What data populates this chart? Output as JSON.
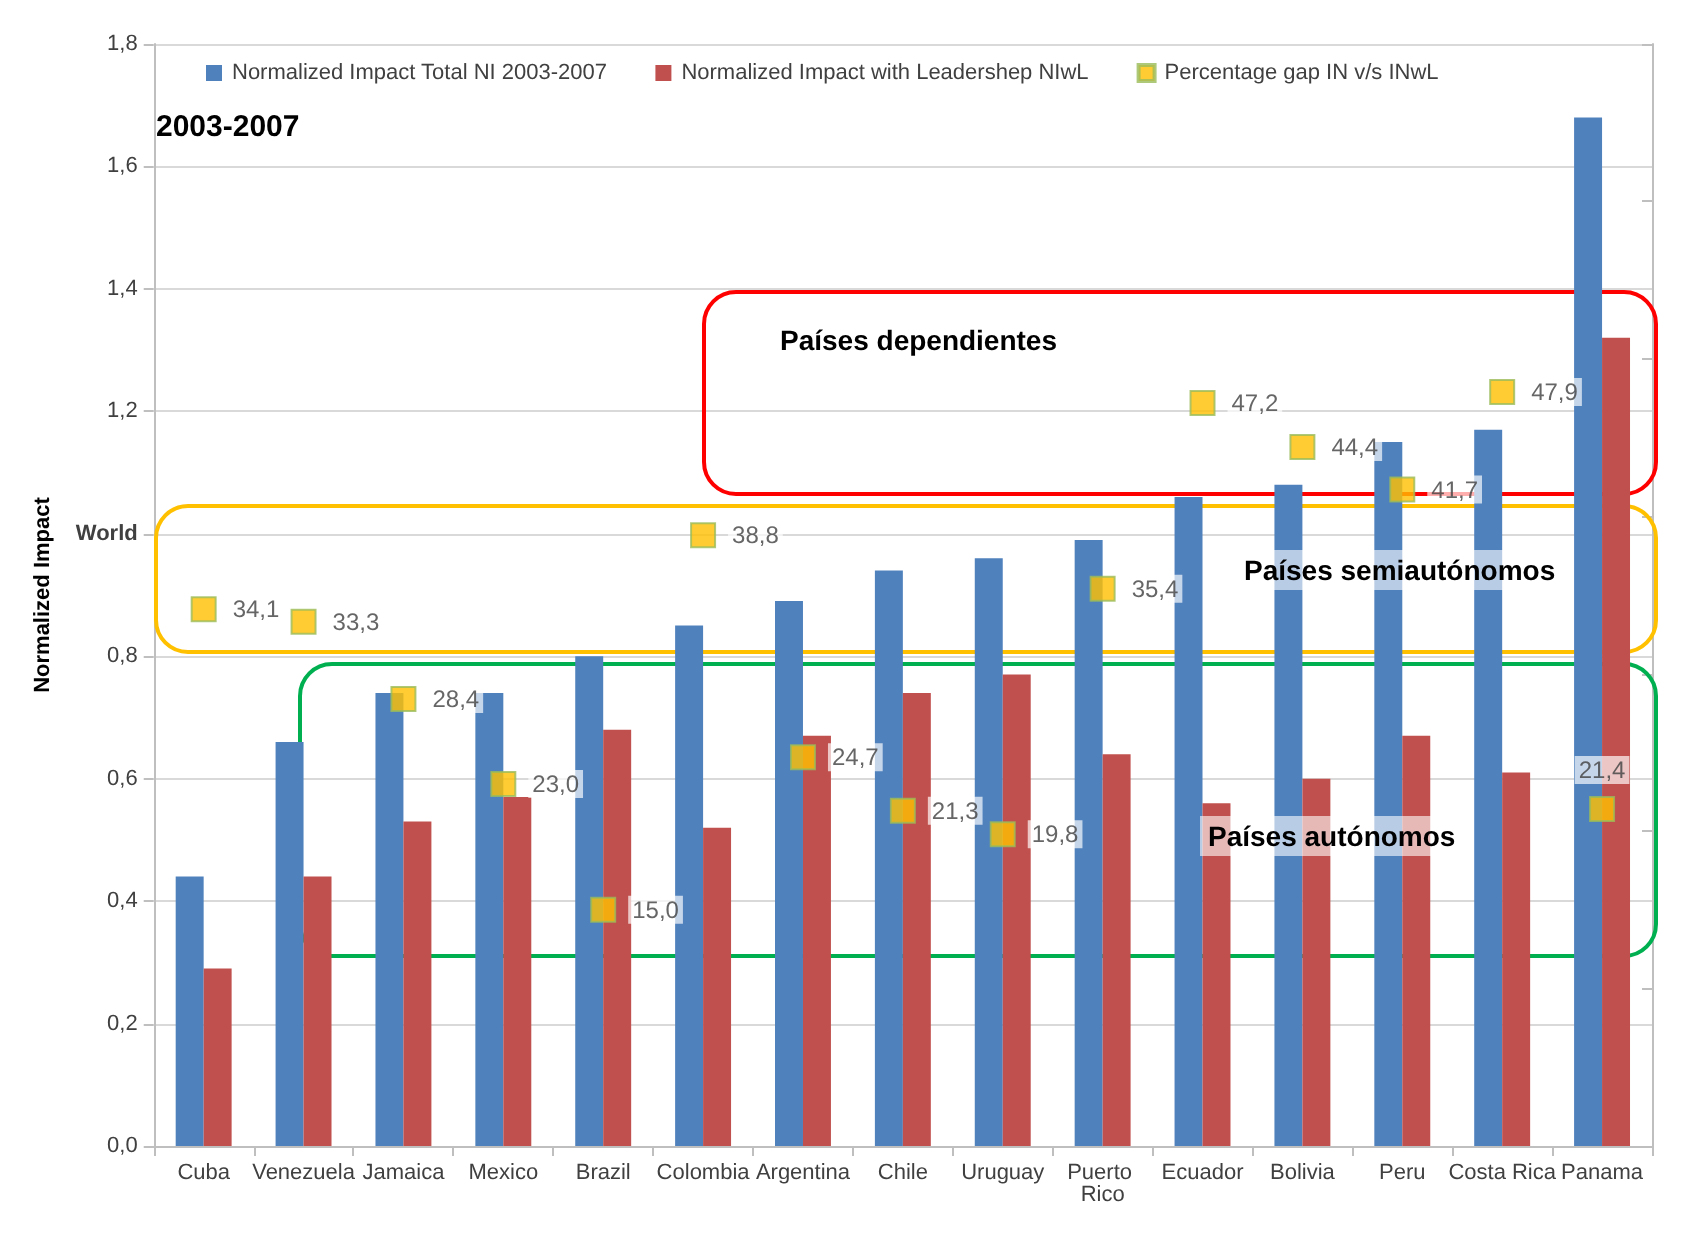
{
  "chart_data": {
    "type": "bar",
    "ylabel": "Normalized Impact",
    "annotations": [
      "2003-2007",
      "Países dependientes",
      "Países semiautónomos",
      "Países autónomos"
    ],
    "categories": [
      "Cuba",
      "Venezuela",
      "Jamaica",
      "Mexico",
      "Brazil",
      "Colombia",
      "Argentina",
      "Chile",
      "Uruguay",
      "Puerto Rico",
      "Ecuador",
      "Bolivia",
      "Peru",
      "Costa Rica",
      "Panama"
    ],
    "series": [
      {
        "name": "Normalized Impact Total NI 2003-2007",
        "color": "#4f81bd",
        "values": [
          0.44,
          0.66,
          0.74,
          0.74,
          0.8,
          0.85,
          0.89,
          0.94,
          0.96,
          0.99,
          1.06,
          1.08,
          1.15,
          1.17,
          1.68
        ]
      },
      {
        "name": "Normalized Impact with Leadershep NIwL",
        "color": "#c0504d",
        "values": [
          0.29,
          0.44,
          0.53,
          0.57,
          0.68,
          0.52,
          0.67,
          0.74,
          0.77,
          0.64,
          0.56,
          0.6,
          0.67,
          0.61,
          1.32
        ]
      },
      {
        "name": "Percentage gap IN v/s INwL",
        "type": "scatter",
        "axis": "y2",
        "marker": "square",
        "color": "#ffc000",
        "values": [
          34.1,
          33.3,
          28.4,
          23.0,
          15.0,
          38.8,
          24.7,
          21.3,
          19.8,
          35.4,
          47.2,
          44.4,
          41.7,
          47.9,
          21.4
        ],
        "value_labels": [
          "34,1",
          "33,3",
          "28,4",
          "23,0",
          "15,0",
          "38,8",
          "24,7",
          "21,3",
          "19,8",
          "35,4",
          "47,2",
          "44,4",
          "41,7",
          "47,9",
          "21,4"
        ]
      }
    ],
    "ylim": [
      0,
      1.8
    ],
    "yticks": [
      {
        "value": 0,
        "label": "0,0"
      },
      {
        "value": 0.2,
        "label": "0,2"
      },
      {
        "value": 0.4,
        "label": "0,4"
      },
      {
        "value": 0.6,
        "label": "0,6"
      },
      {
        "value": 0.8,
        "label": "0,8"
      },
      {
        "value": 1,
        "label": "World"
      },
      {
        "value": 1.2,
        "label": "1,2"
      },
      {
        "value": 1.4,
        "label": "1,4"
      },
      {
        "value": 1.6,
        "label": "1,6"
      },
      {
        "value": 1.8,
        "label": "1,8"
      }
    ],
    "y2lim": [
      0,
      70
    ],
    "y2ticks": [
      {
        "value": 0,
        "label": null
      },
      {
        "value": 10,
        "label": null
      },
      {
        "value": 20,
        "label": null
      },
      {
        "value": 30,
        "label": null
      },
      {
        "value": 40,
        "label": null
      },
      {
        "value": 50,
        "label": null
      },
      {
        "value": 60,
        "label": null
      },
      {
        "value": 70,
        "label": null
      }
    ],
    "grid": "y",
    "legend": "top",
    "tick_labels": "xy"
  }
}
